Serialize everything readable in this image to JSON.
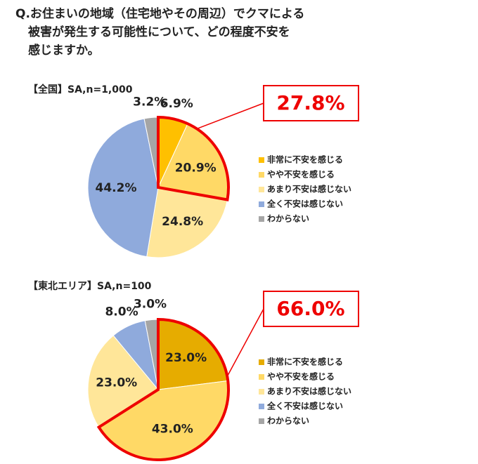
{
  "question": [
    "Q.お住まいの地域（住宅地やその周辺）でクマによる",
    "被害が発生する可能性について、どの程度不安を",
    "感じますか。"
  ],
  "chart_data": [
    {
      "type": "pie",
      "subtitle": "【全国】SA,n=1,000",
      "categories": [
        "非常に不安を感じる",
        "やや不安を感じる",
        "あまり不安は感じない",
        "全く不安は感じない",
        "わからない"
      ],
      "values": [
        6.9,
        20.9,
        24.8,
        44.2,
        3.2
      ],
      "value_labels": [
        "6.9%",
        "20.9%",
        "24.8%",
        "44.2%",
        "3.2%"
      ],
      "colors": [
        "#ffc000",
        "#ffd966",
        "#ffe699",
        "#8faadc",
        "#a5a5a5"
      ],
      "highlight": {
        "value": 27.8,
        "label": "27.8%"
      }
    },
    {
      "type": "pie",
      "subtitle": "【東北エリア】SA,n=100",
      "categories": [
        "非常に不安を感じる",
        "やや不安を感じる",
        "あまり不安は感じない",
        "全く不安は感じない",
        "わからない"
      ],
      "values": [
        23.0,
        43.0,
        23.0,
        8.0,
        3.0
      ],
      "value_labels": [
        "23.0%",
        "43.0%",
        "23.0%",
        "8.0%",
        "3.0%"
      ],
      "colors": [
        "#e6ac00",
        "#ffd966",
        "#ffe699",
        "#8faadc",
        "#a5a5a5"
      ],
      "highlight": {
        "value": 66.0,
        "label": "66.0%"
      }
    }
  ]
}
